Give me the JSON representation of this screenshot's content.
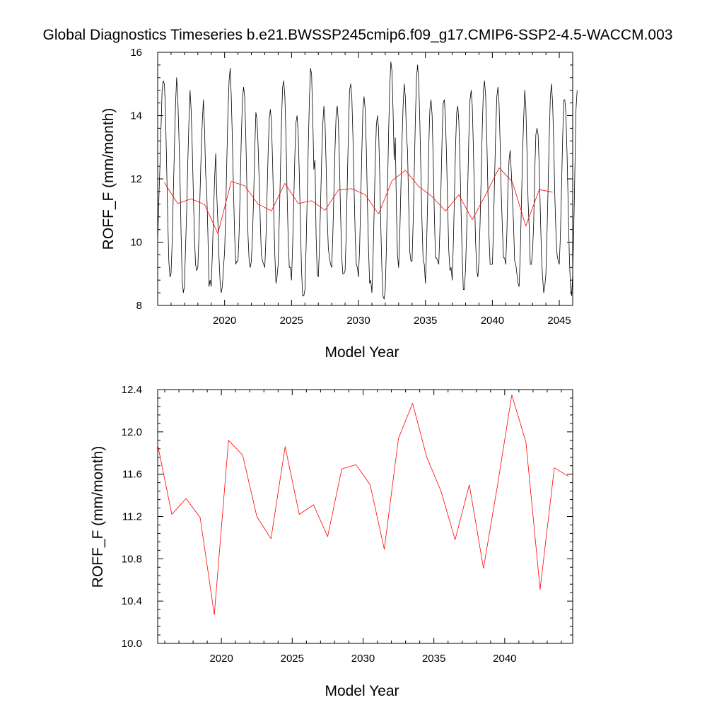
{
  "figure_title": "Global Diagnostics Timeseries b.e21.BWSSP245cmip6.f09_g17.CMIP6-SSP2-4.5-WACCM.003",
  "colors": {
    "monthly": "#000000",
    "annual": "#ff0000",
    "axis": "#000000"
  },
  "chart_data": [
    {
      "type": "line",
      "xlabel": "Model Year",
      "ylabel": "ROFF_F (mm/month)",
      "xlim": [
        2015.0,
        2046.0
      ],
      "ylim": [
        8,
        16
      ],
      "xticks": [
        2020,
        2025,
        2030,
        2035,
        2040,
        2045
      ],
      "xtick_labels": [
        "2020",
        "2025",
        "2030",
        "2035",
        "2040",
        "2045"
      ],
      "yticks": [
        8,
        10,
        12,
        14,
        16
      ],
      "ytick_labels": [
        "8",
        "10",
        "12",
        "14",
        "16"
      ],
      "series": [
        {
          "color": "#000000",
          "x_start": 2015.0,
          "x_step": 0.08333,
          "values": [
            10.0,
            11.3,
            12.4,
            13.6,
            14.8,
            15.1,
            15.0,
            14.2,
            12.5,
            10.8,
            9.4,
            8.9,
            9.0,
            10.0,
            11.5,
            13.0,
            14.3,
            15.2,
            14.6,
            13.4,
            12.0,
            10.3,
            8.8,
            8.4,
            8.6,
            9.8,
            11.0,
            12.5,
            13.8,
            14.8,
            14.2,
            13.0,
            11.5,
            10.1,
            9.3,
            9.1,
            9.2,
            10.2,
            11.6,
            12.8,
            13.8,
            14.5,
            13.6,
            12.2,
            11.6,
            10.3,
            8.6,
            8.8,
            8.6,
            9.6,
            10.8,
            12.0,
            12.8,
            11.5,
            10.6,
            9.5,
            8.7,
            8.4,
            8.6,
            9.2,
            9.7,
            11.0,
            12.6,
            14.1,
            15.1,
            15.5,
            14.6,
            13.2,
            11.6,
            10.2,
            9.3,
            9.4,
            9.4,
            10.3,
            11.8,
            13.3,
            14.5,
            14.9,
            14.6,
            13.3,
            11.7,
            10.2,
            9.4,
            9.2,
            9.4,
            10.2,
            11.4,
            12.9,
            14.1,
            13.9,
            13.1,
            11.9,
            10.6,
            9.6,
            9.4,
            9.3,
            9.2,
            10.1,
            11.4,
            12.8,
            13.9,
            14.2,
            13.8,
            12.6,
            11.0,
            9.6,
            8.7,
            8.9,
            9.3,
            10.7,
            12.2,
            13.8,
            14.9,
            15.1,
            14.6,
            13.3,
            11.6,
            10.1,
            9.2,
            9.2,
            8.8,
            9.9,
            11.3,
            12.8,
            13.8,
            14.0,
            13.4,
            12.1,
            10.5,
            9.1,
            8.3,
            8.3,
            8.5,
            9.8,
            11.3,
            13.0,
            14.5,
            15.5,
            15.3,
            14.0,
            12.3,
            12.6,
            10.2,
            9.0,
            8.9,
            9.8,
            11.2,
            12.7,
            13.7,
            14.3,
            13.8,
            12.4,
            10.8,
            9.8,
            9.5,
            9.3,
            9.2,
            10.2,
            11.6,
            13.0,
            14.1,
            14.3,
            13.8,
            12.4,
            10.8,
            9.5,
            9.0,
            9.0,
            9.1,
            10.3,
            11.9,
            13.5,
            14.8,
            15.0,
            14.6,
            13.4,
            11.8,
            10.3,
            9.3,
            9.2,
            8.9,
            9.8,
            11.3,
            12.9,
            14.2,
            14.6,
            14.2,
            13.0,
            11.3,
            9.8,
            8.7,
            8.8,
            8.4,
            9.4,
            10.9,
            12.5,
            13.7,
            14.0,
            13.6,
            12.2,
            10.5,
            9.1,
            8.3,
            8.2,
            8.5,
            9.8,
            11.6,
            13.4,
            14.9,
            15.7,
            15.4,
            14.2,
            12.6,
            13.3,
            11.0,
            9.6,
            9.2,
            10.2,
            11.7,
            13.2,
            14.3,
            15.0,
            14.6,
            13.4,
            12.9,
            11.2,
            9.7,
            9.4,
            9.4,
            10.6,
            12.2,
            13.9,
            15.2,
            15.6,
            15.1,
            13.8,
            12.1,
            10.5,
            9.4,
            9.3,
            8.7,
            9.8,
            11.4,
            13.0,
            14.2,
            14.5,
            14.0,
            12.6,
            10.9,
            9.5,
            9.5,
            9.4,
            9.3,
            10.4,
            11.8,
            13.4,
            14.4,
            14.5,
            13.9,
            12.6,
            11.0,
            9.7,
            9.1,
            9.2,
            8.8,
            9.9,
            11.4,
            13.0,
            14.1,
            14.3,
            13.8,
            12.5,
            10.9,
            9.5,
            8.5,
            8.5,
            9.2,
            10.4,
            11.9,
            13.4,
            14.5,
            14.8,
            14.3,
            13.0,
            11.4,
            10.0,
            9.1,
            8.9,
            9.4,
            10.6,
            12.1,
            13.7,
            14.8,
            15.1,
            14.6,
            13.3,
            11.6,
            10.2,
            9.3,
            9.3,
            9.3,
            10.4,
            12.0,
            13.5,
            14.6,
            14.9,
            14.4,
            13.1,
            11.5,
            10.4,
            9.5,
            9.5,
            9.3,
            10.3,
            11.8,
            12.6,
            12.9,
            12.2,
            11.4,
            10.6,
            9.4,
            9.3,
            9.0,
            8.7,
            8.6,
            9.6,
            11.1,
            12.7,
            13.8,
            14.8,
            14.3,
            12.9,
            11.3,
            10.5,
            9.3,
            9.3,
            9.7,
            10.6,
            12.2,
            13.4,
            13.6,
            13.4,
            12.4,
            11.0,
            9.6,
            8.9,
            8.4,
            8.6,
            9.0,
            10.3,
            11.8,
            13.3,
            14.6,
            15.0,
            14.4,
            13.1,
            11.5,
            10.3,
            9.6,
            9.4,
            9.3,
            10.2,
            11.7,
            13.3,
            14.5,
            14.5,
            14.0,
            12.7,
            11.1,
            9.6,
            8.6,
            8.3,
            9.0,
            10.5,
            12.3,
            14.2,
            14.8
          ]
        },
        {
          "color": "#ff0000",
          "x": [
            2015.5,
            2016.5,
            2017.5,
            2018.5,
            2019.5,
            2020.5,
            2021.5,
            2022.5,
            2023.5,
            2024.5,
            2025.5,
            2026.5,
            2027.5,
            2028.5,
            2029.5,
            2030.5,
            2031.5,
            2032.5,
            2033.5,
            2034.5,
            2035.5,
            2036.5,
            2037.5,
            2038.5,
            2039.5,
            2040.5,
            2041.5,
            2042.5,
            2043.5,
            2044.5
          ],
          "values": [
            11.88,
            11.22,
            11.37,
            11.19,
            10.27,
            11.92,
            11.78,
            11.2,
            10.99,
            11.86,
            11.22,
            11.31,
            11.01,
            11.65,
            11.69,
            11.5,
            10.89,
            11.94,
            12.27,
            11.76,
            11.44,
            10.98,
            11.5,
            10.71,
            11.5,
            12.35,
            11.9,
            10.51,
            11.66,
            11.58
          ]
        }
      ]
    },
    {
      "type": "line",
      "xlabel": "Model Year",
      "ylabel": "ROFF_F (mm/month)",
      "xlim": [
        2015.5,
        2044.8
      ],
      "ylim": [
        10.0,
        12.4
      ],
      "xticks": [
        2020,
        2025,
        2030,
        2035,
        2040
      ],
      "xtick_labels": [
        "2020",
        "2025",
        "2030",
        "2035",
        "2040"
      ],
      "yticks": [
        10.0,
        10.4,
        10.8,
        11.2,
        11.6,
        12.0,
        12.4
      ],
      "ytick_labels": [
        "10.0",
        "10.4",
        "10.8",
        "11.2",
        "11.6",
        "12.0",
        "12.4"
      ],
      "series": [
        {
          "color": "#ff0000",
          "x": [
            2015.5,
            2016.5,
            2017.5,
            2018.5,
            2019.5,
            2020.5,
            2021.5,
            2022.5,
            2023.5,
            2024.5,
            2025.5,
            2026.5,
            2027.5,
            2028.5,
            2029.5,
            2030.5,
            2031.5,
            2032.5,
            2033.5,
            2034.5,
            2035.5,
            2036.5,
            2037.5,
            2038.5,
            2039.5,
            2040.5,
            2041.5,
            2042.5,
            2043.5,
            2044.5
          ],
          "values": [
            11.88,
            11.22,
            11.37,
            11.19,
            10.27,
            11.92,
            11.78,
            11.2,
            10.99,
            11.86,
            11.22,
            11.31,
            11.01,
            11.65,
            11.69,
            11.5,
            10.89,
            11.94,
            12.27,
            11.76,
            11.44,
            10.98,
            11.5,
            10.71,
            11.5,
            12.35,
            11.9,
            10.51,
            11.66,
            11.58
          ]
        }
      ]
    }
  ]
}
